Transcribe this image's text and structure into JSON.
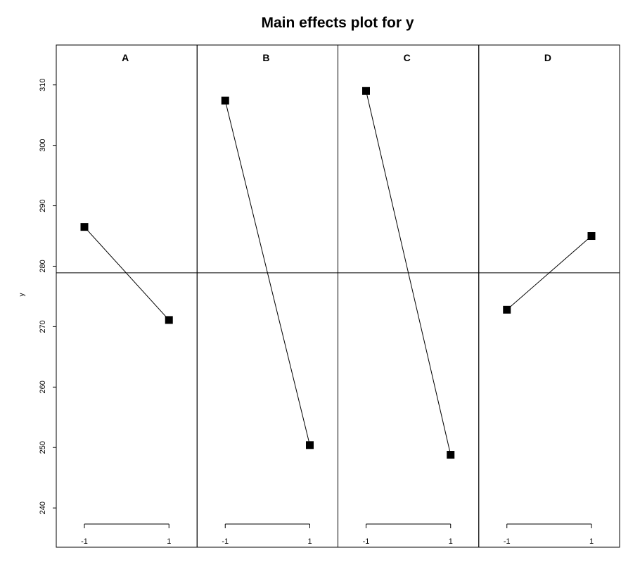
{
  "chart_data": {
    "type": "line",
    "title": "Main effects plot for y",
    "ylabel": "y",
    "xlabel": "",
    "ylim": [
      233.5,
      316.6
    ],
    "yticks": [
      240,
      250,
      260,
      270,
      280,
      290,
      300,
      310
    ],
    "xticks": [
      "-1",
      "1"
    ],
    "grand_mean": 278.9,
    "marker": "square",
    "colors": {
      "line": "#000000",
      "marker": "#000000",
      "frame": "#000000"
    },
    "panels": [
      {
        "factor": "A",
        "x": [
          -1,
          1
        ],
        "y": [
          286.5,
          271.1
        ]
      },
      {
        "factor": "B",
        "x": [
          -1,
          1
        ],
        "y": [
          307.4,
          250.4
        ]
      },
      {
        "factor": "C",
        "x": [
          -1,
          1
        ],
        "y": [
          309.0,
          248.8
        ]
      },
      {
        "factor": "D",
        "x": [
          -1,
          1
        ],
        "y": [
          272.8,
          285.0
        ]
      }
    ]
  }
}
